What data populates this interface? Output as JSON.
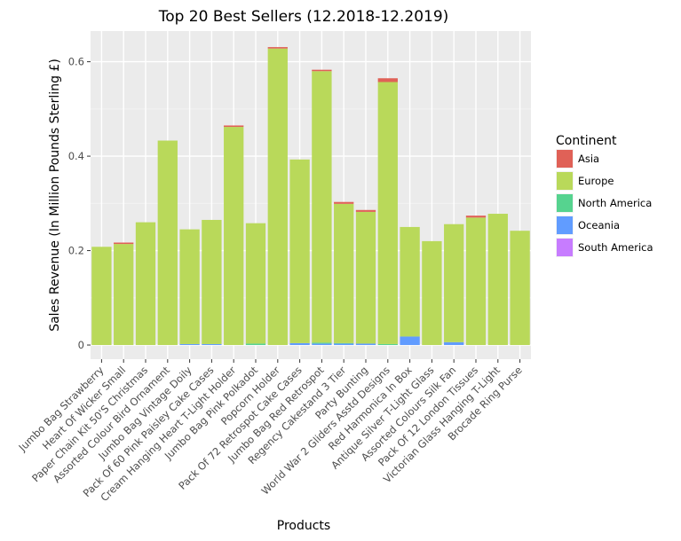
{
  "chart_data": {
    "type": "bar",
    "stacked": true,
    "title": "Top 20 Best Sellers (12.2018-12.2019)",
    "xlabel": "Products",
    "ylabel": "Sales Revenue (In Million Pounds Sterling £)",
    "ylim": [
      -0.03,
      0.665
    ],
    "yticks": [
      0,
      0.2,
      0.4,
      0.6
    ],
    "ytick_labels": [
      "0",
      "0.2",
      "0.4",
      "0.6"
    ],
    "grid": true,
    "legend": {
      "title": "Continent",
      "position": "right"
    },
    "categories": [
      "Jumbo Bag Strawberry",
      "Heart Of Wicker Small",
      "Paper Chain Kit 50'S Christmas",
      "Assorted Colour Bird Ornament",
      "Jumbo Bag Vintage Doily",
      "Pack Of 60 Pink Paisley Cake Cases",
      "Cream Hanging Heart T-Light Holder",
      "Jumbo Bag Pink Polkadot",
      "Popcorn Holder",
      "Pack Of 72 Retrospot Cake Cases",
      "Jumbo Bag Red Retrospot",
      "Regency Cakestand 3 Tier",
      "Party Bunting",
      "World War 2 Gliders Asstd Designs",
      "Red Harmonica In Box",
      "Antique Silver T-Light Glass",
      "Assorted Colours Silk Fan",
      "Pack Of 12 London Tissues",
      "Victorian Glass Hanging T-Light",
      "Brocade Ring Purse"
    ],
    "series": [
      {
        "name": "South America",
        "color": "#c77cff",
        "values": [
          0,
          0,
          0,
          0,
          0,
          0,
          0,
          0,
          0,
          0,
          0,
          0,
          0,
          0,
          0,
          0,
          0,
          0,
          0,
          0
        ]
      },
      {
        "name": "Oceania",
        "color": "#619cff",
        "values": [
          0,
          0,
          0,
          0,
          0.002,
          0.002,
          0,
          0,
          0,
          0.004,
          0.003,
          0.003,
          0.003,
          0,
          0.018,
          0,
          0.006,
          0,
          0,
          0
        ]
      },
      {
        "name": "North America",
        "color": "#56d38f",
        "values": [
          0,
          0,
          0,
          0,
          0,
          0,
          0,
          0.003,
          0,
          0,
          0.002,
          0.001,
          0,
          0.002,
          0,
          0,
          0,
          0,
          0,
          0
        ]
      },
      {
        "name": "Europe",
        "color": "#b9d95a",
        "values": [
          0.208,
          0.214,
          0.26,
          0.433,
          0.243,
          0.263,
          0.462,
          0.255,
          0.628,
          0.389,
          0.575,
          0.295,
          0.279,
          0.555,
          0.232,
          0.22,
          0.25,
          0.27,
          0.278,
          0.242
        ]
      },
      {
        "name": "Asia",
        "color": "#e06157",
        "values": [
          0,
          0.003,
          0,
          0,
          0,
          0,
          0.003,
          0,
          0.003,
          0,
          0.003,
          0.004,
          0.004,
          0.008,
          0,
          0,
          0,
          0.004,
          0,
          0
        ]
      }
    ],
    "legend_order": [
      "Asia",
      "Europe",
      "North America",
      "Oceania",
      "South America"
    ]
  }
}
